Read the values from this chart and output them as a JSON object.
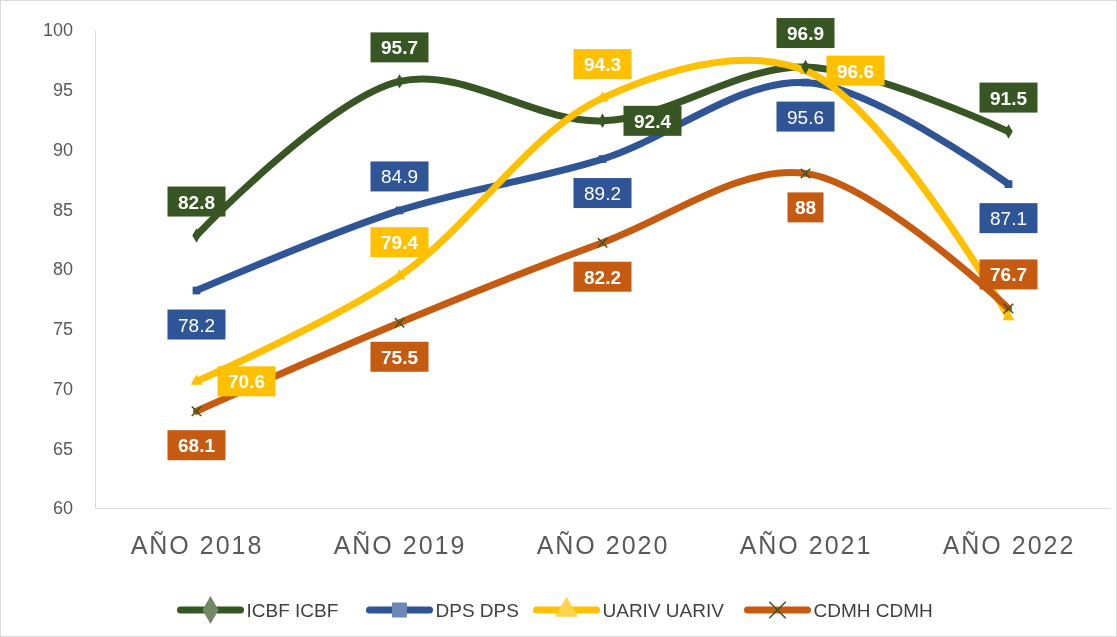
{
  "chart_data": {
    "type": "line",
    "categories": [
      "AÑO 2018",
      "AÑO 2019",
      "AÑO 2020",
      "AÑO 2021",
      "AÑO 2022"
    ],
    "ylim": [
      60,
      100
    ],
    "yticks": [
      60,
      65,
      70,
      75,
      80,
      85,
      90,
      95,
      100
    ],
    "grid": false,
    "legend": "bottom",
    "data_labels": true,
    "line_style": "solid",
    "series": [
      {
        "name": "ICBF ICBF",
        "color": "#375623",
        "marker": "diamond",
        "values": [
          82.8,
          95.7,
          92.4,
          96.9,
          91.5
        ]
      },
      {
        "name": "DPS DPS",
        "color": "#2f5597",
        "marker": "square",
        "values": [
          78.2,
          84.9,
          89.2,
          95.6,
          87.1
        ]
      },
      {
        "name": "UARIV UARIV",
        "color": "#ffc000",
        "marker": "triangle",
        "values": [
          70.6,
          79.4,
          94.3,
          96.6,
          76
        ],
        "value_labels": [
          "70.6",
          "79.4",
          "94.3",
          "96.6",
          null
        ]
      },
      {
        "name": "CDMH CDMH",
        "color": "#c55a11",
        "marker": "cross",
        "values": [
          68.1,
          75.5,
          82.2,
          88,
          76.7
        ]
      }
    ]
  }
}
